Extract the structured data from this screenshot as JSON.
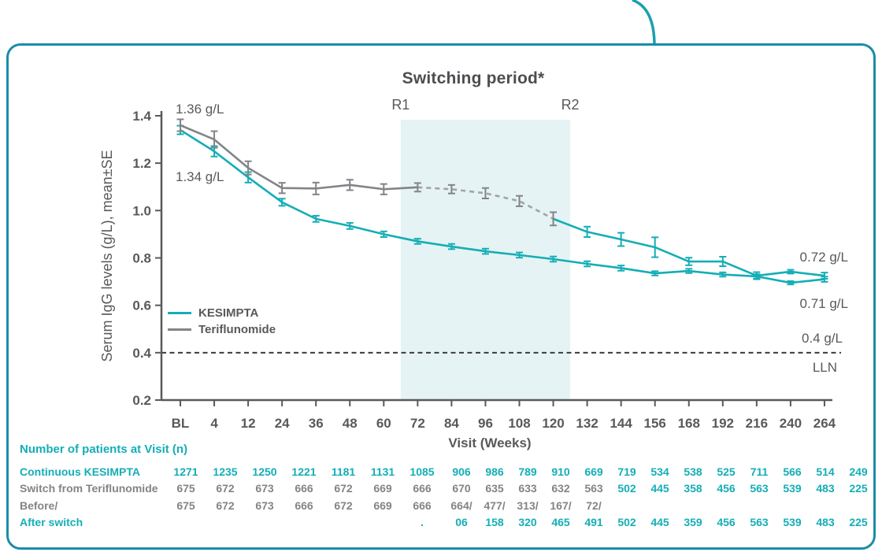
{
  "colors": {
    "accent": "#14aeb6",
    "gray": "#828487",
    "dashGray": "#a2a4a7",
    "text": "#58595b",
    "shade": "#e6f3f4",
    "border": "#1b8ca8",
    "lln": "#3a3b3e",
    "curve": "#1b9fb0"
  },
  "chart_data": {
    "type": "line",
    "title": "Switching period*",
    "xlabel": "Visit (Weeks)",
    "ylabel": "Serum IgG levels (g/L), mean±SE",
    "categories": [
      "BL",
      "4",
      "12",
      "24",
      "36",
      "48",
      "60",
      "72",
      "84",
      "96",
      "108",
      "120",
      "132",
      "144",
      "156",
      "168",
      "192",
      "216",
      "240",
      "264"
    ],
    "ylim": [
      0.2,
      1.4
    ],
    "yticks": [
      "0.2",
      "0.4",
      "0.6",
      "0.8",
      "1.0",
      "1.2",
      "1.4"
    ],
    "grid": false,
    "legend_position": "left-middle",
    "lln_line": {
      "value": 0.4,
      "value_label": "0.4 g/L",
      "label": "LLN"
    },
    "switching_region": {
      "start_after": "60",
      "end_after": "120",
      "start_label": "R1",
      "end_label": "R2"
    },
    "series": [
      {
        "name": "KESIMPTA",
        "color_key": "accent",
        "values": [
          1.34,
          1.25,
          1.14,
          1.035,
          0.965,
          0.935,
          0.9,
          0.87,
          0.848,
          0.828,
          0.812,
          0.795,
          0.775,
          0.757,
          0.735,
          0.745,
          0.73,
          0.722,
          0.695,
          0.71
        ],
        "se": [
          0.018,
          0.022,
          0.022,
          0.015,
          0.013,
          0.013,
          0.012,
          0.011,
          0.011,
          0.011,
          0.011,
          0.011,
          0.011,
          0.011,
          0.009,
          0.009,
          0.009,
          0.009,
          0.007,
          0.011
        ],
        "errorbar_accent_from": 0
      },
      {
        "name": "Teriflunomide",
        "color_key": "gray",
        "values": [
          1.36,
          1.3,
          1.18,
          1.095,
          1.093,
          1.108,
          1.09,
          1.098,
          1.09,
          1.073,
          1.04,
          0.965,
          0.91,
          0.878,
          0.845,
          0.785,
          0.785,
          0.725,
          0.742,
          0.725
        ],
        "se": [
          0.025,
          0.035,
          0.028,
          0.022,
          0.025,
          0.022,
          0.022,
          0.018,
          0.018,
          0.022,
          0.022,
          0.028,
          0.022,
          0.028,
          0.042,
          0.016,
          0.02,
          0.015,
          0.008,
          0.013
        ],
        "segments": [
          {
            "from": 0,
            "to": 7,
            "color_key": "gray",
            "dashed": false
          },
          {
            "from": 7,
            "to": 11,
            "color_key": "dashGray",
            "dashed": true
          },
          {
            "from": 11,
            "to": 19,
            "color_key": "accent",
            "dashed": false
          }
        ],
        "errorbar_accent_from": 12
      }
    ],
    "annotations": {
      "teriflunomide_baseline": "1.36 g/L",
      "kesimpta_baseline": "1.34 g/L",
      "switch_end": "0.72 g/L",
      "kesimpta_end": "0.71 g/L"
    }
  },
  "patients_table": {
    "header": "Number of patients at Visit (n)",
    "rows": [
      {
        "label": "Continuous KESIMPTA",
        "label_color": "accent",
        "value_color": "accent",
        "values": [
          "1271",
          "1235",
          "1250",
          "1221",
          "1181",
          "1131",
          "1085",
          "906",
          "986",
          "789",
          "910",
          "669",
          "719",
          "534",
          "538",
          "525",
          "711",
          "566",
          "514",
          "249"
        ]
      },
      {
        "label": "Switch from Teriflunomide",
        "label_color": "gray",
        "value_color": "gray",
        "accent_from": 12,
        "values": [
          "675",
          "672",
          "673",
          "666",
          "672",
          "669",
          "666",
          "670",
          "635",
          "633",
          "632",
          "563",
          "502",
          "445",
          "358",
          "456",
          "563",
          "539",
          "483",
          "225"
        ]
      },
      {
        "label": "Before/",
        "label_color": "gray",
        "value_color": "gray",
        "values": [
          "675",
          "672",
          "673",
          "666",
          "672",
          "669",
          "666",
          "664/",
          "477/",
          "313/",
          "167/",
          "72/",
          "",
          "",
          "",
          "",
          "",
          "",
          "",
          ""
        ]
      },
      {
        "label": "After switch",
        "label_color": "accent",
        "value_color": "accent",
        "values": [
          "",
          "",
          "",
          "",
          "",
          "",
          ".",
          "06",
          "158",
          "320",
          "465",
          "491",
          "502",
          "445",
          "359",
          "456",
          "563",
          "539",
          "483",
          "225"
        ]
      }
    ]
  }
}
